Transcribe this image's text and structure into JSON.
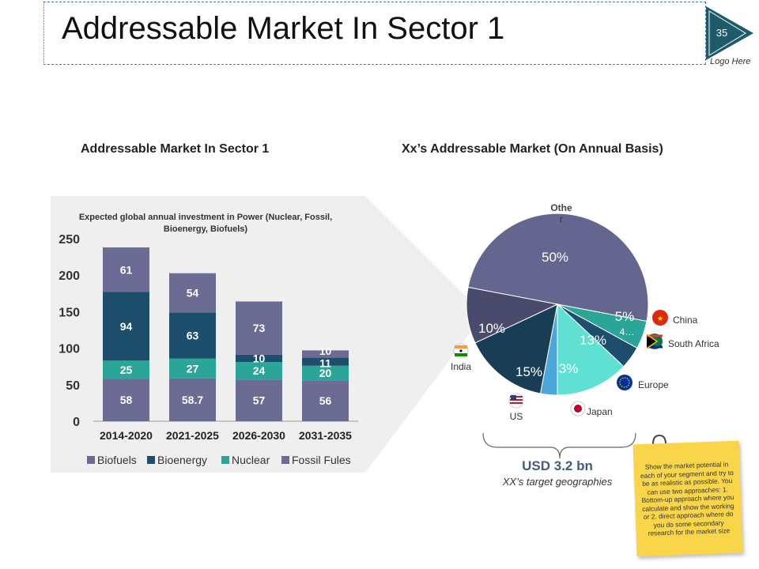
{
  "page": {
    "title": "Addressable Market In Sector 1",
    "slide_number": "35",
    "logo_text": "Logo Here"
  },
  "left_section_title": "Addressable Market In Sector 1",
  "right_section_title": "Xx’s Addressable Market (On Annual Basis)",
  "bar_chart_title_line1": "Expected global annual investment in Power (Nuclear, Fossil,",
  "bar_chart_title_line2": "Bioenergy, Biofuels)",
  "chart_data": [
    {
      "type": "bar",
      "stacked": true,
      "title": "Expected global annual investment in Power (Nuclear, Fossil, Bioenergy, Biofuels)",
      "categories": [
        "2014-2020",
        "2021-2025",
        "2026-2030",
        "2031-2035"
      ],
      "series": [
        {
          "name": "Biofuels",
          "values": [
            58,
            58.7,
            57,
            56
          ],
          "labels": [
            "58",
            "58.7",
            "57",
            "56"
          ],
          "color": "#6b6b94"
        },
        {
          "name": "Nuclear",
          "values": [
            25,
            27,
            24,
            20
          ],
          "labels": [
            "25",
            "27",
            "24",
            "20"
          ],
          "color": "#2aa597"
        },
        {
          "name": "Bioenergy",
          "values": [
            94,
            63,
            10,
            11
          ],
          "labels": [
            "94",
            "63",
            "10",
            "11"
          ],
          "color": "#1d4e6c"
        },
        {
          "name": "Fossil Fules",
          "values": [
            61,
            54,
            73,
            10
          ],
          "labels": [
            "61",
            "54",
            "73",
            "10"
          ],
          "color": "#6b6b94"
        }
      ],
      "legend_order": [
        "Biofuels",
        "Bioenergy",
        "Nuclear",
        "Fossil Fules"
      ],
      "ylim": [
        0,
        250
      ],
      "yticks": [
        0,
        50,
        100,
        150,
        200,
        250
      ],
      "legend_position": "bottom"
    },
    {
      "type": "pie",
      "title": "Xx’s Addressable Market (On Annual Basis)",
      "slices": [
        {
          "label": "Other",
          "value": 50,
          "text": "50%",
          "color": "#65668f"
        },
        {
          "label": "China",
          "value": 5,
          "text": "5%",
          "color": "#2aa597"
        },
        {
          "label": "South Africa",
          "value": 4,
          "text": "4…",
          "color": "#1d4e6c"
        },
        {
          "label": "Europe",
          "value": 13,
          "text": "13%",
          "color": "#5fe0d2"
        },
        {
          "label": "Japan",
          "value": 3,
          "text": "3%",
          "color": "#4aa7d8"
        },
        {
          "label": "US",
          "value": 15,
          "text": "15%",
          "color": "#193d55"
        },
        {
          "label": "India",
          "value": 10,
          "text": "10%",
          "color": "#4a4a6d"
        }
      ],
      "category_labels": {
        "other_line1": "Othe",
        "other_line2": "r"
      }
    }
  ],
  "pie_summary": {
    "total": "USD 3.2 bn",
    "subtitle": "XX’s target geographies"
  },
  "sticky_note": "Show the market potential in each of your segment and try to be as realistic as possible. You can use two approaches: 1. Bottom-up approach where you calculate and show the working or 2. direct approach where do you do some secondary research for the market size",
  "colors": {
    "accent": "#1d5a6a",
    "panel": "#efefef",
    "note": "#f9d54a"
  }
}
